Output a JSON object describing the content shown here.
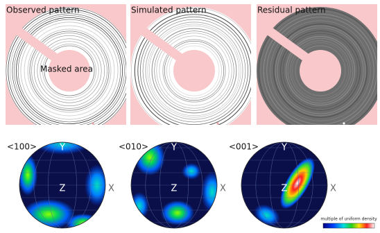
{
  "panels": [
    {
      "title": "Observed pattern"
    },
    {
      "title": "Simulated pattern"
    },
    {
      "title": "Residual pattern"
    }
  ],
  "masked_area": "Masked area",
  "pole_figures": [
    {
      "label": "<100>",
      "y_axis": "Y",
      "z_axis": "Z",
      "x_axis": "X"
    },
    {
      "label": "<010>",
      "y_axis": "Y",
      "z_axis": "Z",
      "x_axis": "X"
    },
    {
      "label": "<001>",
      "y_axis": "Y",
      "z_axis": "Z",
      "x_axis": "X"
    }
  ],
  "colorbar": {
    "label": "multiple of uniform density"
  }
}
